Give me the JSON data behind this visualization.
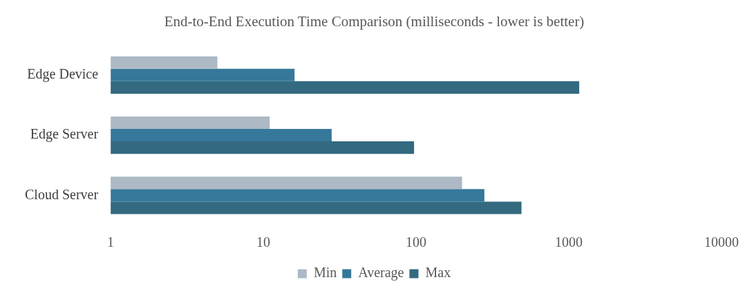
{
  "chart_data": {
    "type": "bar",
    "orientation": "horizontal",
    "title": "End-to-End Execution Time Comparison (milliseconds - lower is better)",
    "categories": [
      "Edge Device",
      "Edge Server",
      "Cloud Server"
    ],
    "series": [
      {
        "name": "Min",
        "color": "#adb9c5",
        "values": [
          5,
          11,
          200
        ]
      },
      {
        "name": "Average",
        "color": "#36789a",
        "values": [
          16,
          28,
          280
        ]
      },
      {
        "name": "Max",
        "color": "#336a80",
        "values": [
          1170,
          97,
          490
        ]
      }
    ],
    "log": "x",
    "xlim": [
      1,
      10000
    ],
    "xticks": [
      1,
      10,
      100,
      1000,
      10000
    ],
    "grid": false,
    "legend": "bottom"
  }
}
